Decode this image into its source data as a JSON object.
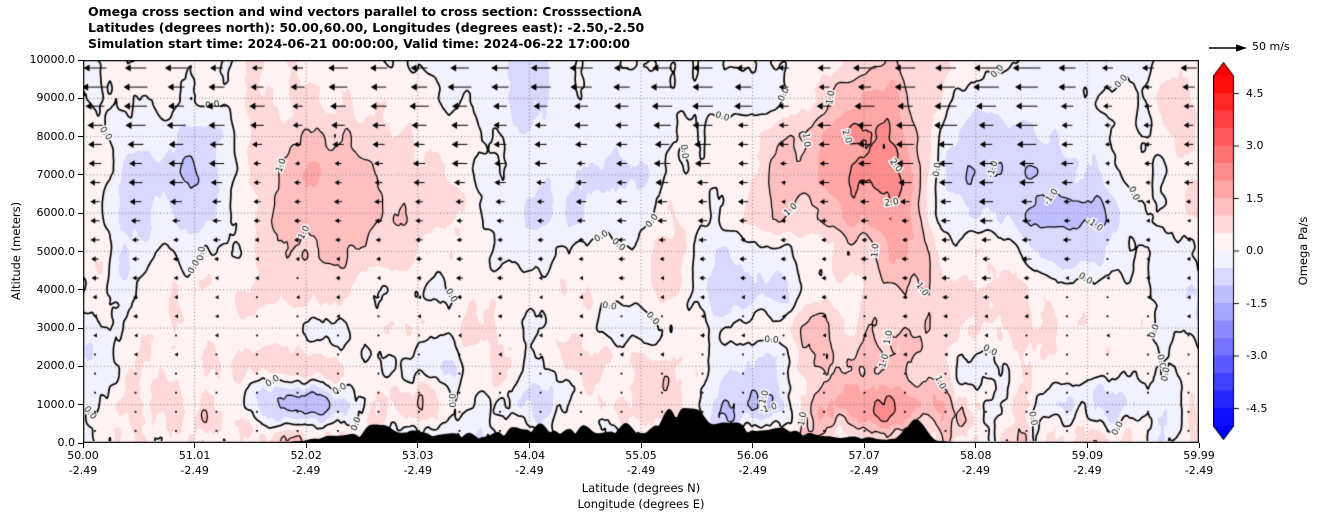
{
  "header": {
    "title_line1": "Omega cross section and wind vectors parallel to cross section: CrosssectionA",
    "title_line2": "Latitudes (degrees north): 50.00,60.00, Longitudes (degrees east): -2.50,-2.50",
    "title_line3": "Simulation start time: 2024-06-21 00:00:00, Valid time: 2024-06-22 17:00:00"
  },
  "axes": {
    "y_label": "Altitude (meters)",
    "y_ticks": [
      "0.0",
      "1000.0",
      "2000.0",
      "3000.0",
      "4000.0",
      "5000.0",
      "6000.0",
      "7000.0",
      "8000.0",
      "9000.0",
      "10000.0"
    ],
    "x_label_line1": "Latitude (degrees N)",
    "x_label_line2": "Longitude (degrees E)",
    "x_ticks_lat": [
      "50.00",
      "51.01",
      "52.02",
      "53.03",
      "54.04",
      "55.05",
      "56.06",
      "57.07",
      "58.08",
      "59.09",
      "59.99"
    ],
    "x_ticks_lon": [
      "-2.49",
      "-2.49",
      "-2.49",
      "-2.49",
      "-2.49",
      "-2.49",
      "-2.49",
      "-2.49",
      "-2.49",
      "-2.49",
      "-2.49"
    ]
  },
  "colorbar": {
    "label": "Omega Pa/s",
    "ticks": [
      "4.5",
      "3.0",
      "1.5",
      "0.0",
      "-1.5",
      "-3.0",
      "-4.5"
    ],
    "color_positive": "#ff0000",
    "color_zero": "#ffffff",
    "color_negative": "#0000ff"
  },
  "quiver_key": {
    "label": "50 m/s",
    "speed_m_s": 50
  },
  "chart_data": {
    "type": "heatmap",
    "title": "Omega cross section and wind vectors parallel to cross section: CrosssectionA",
    "subtitle_region": "Latitudes (degrees north): 50.00,60.00, Longitudes (degrees east): -2.50,-2.50",
    "subtitle_time": "Simulation start time: 2024-06-21 00:00:00, Valid time: 2024-06-22 17:00:00",
    "xlabel": "Latitude (degrees N) / Longitude (degrees E)",
    "ylabel": "Altitude (meters)",
    "x_latitudes": [
      50.0,
      51.01,
      52.02,
      53.03,
      54.04,
      55.05,
      56.06,
      57.07,
      58.08,
      59.09,
      59.99
    ],
    "x_longitudes": [
      -2.49,
      -2.49,
      -2.49,
      -2.49,
      -2.49,
      -2.49,
      -2.49,
      -2.49,
      -2.49,
      -2.49,
      -2.49
    ],
    "ylim": [
      0,
      10000
    ],
    "colorbar": {
      "label": "Omega Pa/s",
      "units": "Pa/s",
      "vmin": -5.0,
      "vmax": 5.0,
      "level_step": 0.5,
      "tick_values": [
        -4.5,
        -3.0,
        -1.5,
        0.0,
        1.5,
        3.0,
        4.5
      ],
      "cmap": "blue-white-red",
      "legend_position": "right"
    },
    "contour_levels": [
      -2.0,
      -1.0,
      0.0,
      1.0,
      2.0
    ],
    "contour_style": {
      "positive": "solid",
      "negative": "dashed",
      "color": "#000000"
    },
    "wind_reference_m_s": 50,
    "wind_direction": "arrows point toward decreasing latitude (leftward), strongest aloft",
    "omega_grid_pa_s": {
      "lat_points": [
        50,
        51,
        52,
        53,
        54,
        55,
        56,
        57,
        58,
        59,
        60
      ],
      "alt_points_m": [
        0,
        1000,
        2000,
        3000,
        4000,
        5000,
        6000,
        7000,
        8000,
        9000,
        10000
      ],
      "values": [
        [
          0.1,
          0.3,
          0.8,
          -0.5,
          0.3,
          -0.2,
          0.5,
          1.0,
          0.2,
          0.3,
          0.1
        ],
        [
          0.2,
          0.5,
          -1.5,
          0.8,
          -0.5,
          0.6,
          -0.8,
          2.5,
          0.4,
          -0.8,
          0.3
        ],
        [
          0.1,
          0.4,
          0.6,
          -0.4,
          0.3,
          0.5,
          -0.3,
          1.5,
          -0.2,
          0.3,
          0.2
        ],
        [
          0.2,
          0.3,
          -0.3,
          0.4,
          0.2,
          -0.3,
          0.5,
          1.0,
          0.2,
          0.4,
          -0.2
        ],
        [
          0.1,
          0.2,
          0.4,
          -0.2,
          0.3,
          0.4,
          -0.6,
          0.8,
          0.5,
          0.2,
          -0.3
        ],
        [
          0.2,
          -0.4,
          0.8,
          0.3,
          -0.3,
          0.3,
          -0.4,
          1.2,
          0.3,
          -0.6,
          0.2
        ],
        [
          0.1,
          -0.9,
          1.2,
          0.4,
          -0.8,
          -0.2,
          0.5,
          2.0,
          -0.6,
          -1.1,
          0.5
        ],
        [
          0.2,
          -1.2,
          1.4,
          0.2,
          -0.6,
          -0.5,
          0.6,
          2.5,
          -1.0,
          -0.5,
          0.3
        ],
        [
          0.3,
          -0.8,
          1.0,
          0.3,
          -0.2,
          -0.3,
          0.4,
          2.2,
          -0.8,
          -0.2,
          0.4
        ],
        [
          0.1,
          -0.2,
          0.5,
          0.2,
          -0.3,
          -0.2,
          -0.4,
          1.5,
          -0.3,
          0.2,
          0.3
        ],
        [
          0.2,
          -0.1,
          0.3,
          0.1,
          -0.2,
          0.1,
          -0.3,
          0.8,
          0.2,
          -0.1,
          0.1
        ]
      ]
    },
    "terrain": {
      "note": "black surface-elevation silhouette along bottom axis, main peaks between latitudes ~52.5 and ~57.5"
    }
  }
}
